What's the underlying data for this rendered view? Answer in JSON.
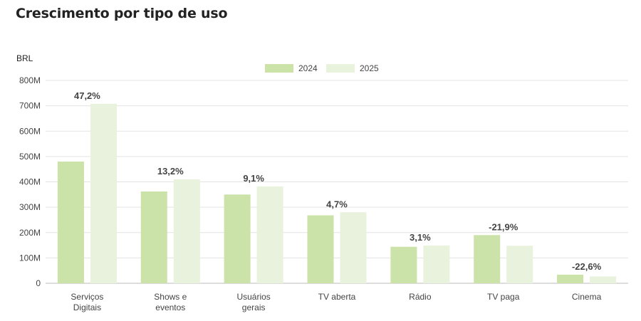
{
  "chart_data": {
    "type": "bar",
    "title": "Crescimento por tipo de uso",
    "ylabel": "BRL",
    "xlabel": "",
    "ylim": [
      0,
      800000000
    ],
    "yticks": [
      0,
      100000000,
      200000000,
      300000000,
      400000000,
      500000000,
      600000000,
      700000000,
      800000000
    ],
    "ytick_labels": [
      "0",
      "100M",
      "200M",
      "300M",
      "400M",
      "500M",
      "600M",
      "700M",
      "800M"
    ],
    "categories": [
      [
        "Serviços",
        "Digitais"
      ],
      [
        "Shows e",
        "eventos"
      ],
      [
        "Usuários",
        "gerais"
      ],
      [
        "TV aberta"
      ],
      [
        "Rádio"
      ],
      [
        "TV paga"
      ],
      [
        "Cinema"
      ]
    ],
    "series": [
      {
        "name": "2024",
        "color": "#cbe2a9",
        "values": [
          480000000,
          362000000,
          350000000,
          268000000,
          144000000,
          190000000,
          34000000
        ]
      },
      {
        "name": "2025",
        "color": "#e8f2dc",
        "values": [
          708000000,
          410000000,
          382000000,
          280000000,
          149000000,
          148000000,
          27000000
        ]
      }
    ],
    "annotations": [
      "47,2%",
      "13,2%",
      "9,1%",
      "4,7%",
      "3,1%",
      "-21,9%",
      "-22,6%"
    ],
    "grid": true,
    "legend": "top-center"
  }
}
